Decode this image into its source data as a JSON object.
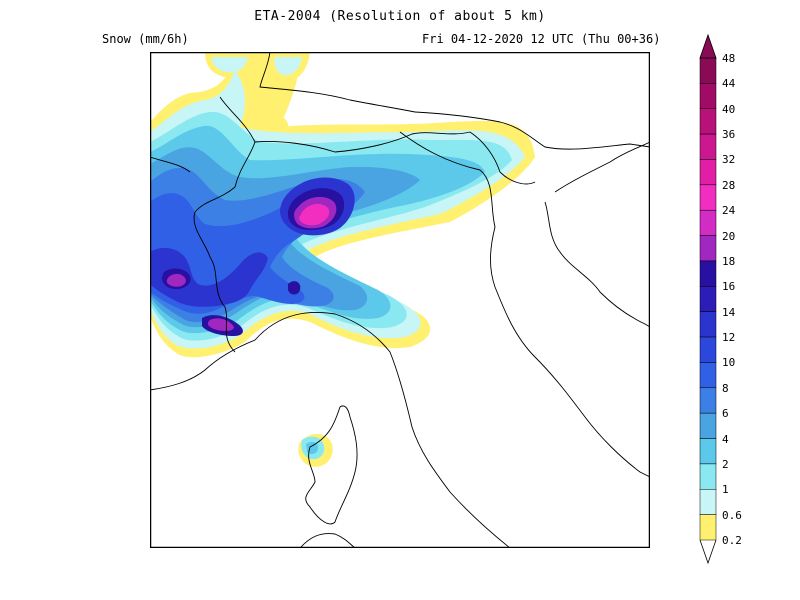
{
  "header": {
    "title": "ETA-2004 (Resolution of about 5 km)",
    "parameter": "Snow (mm/6h)",
    "valid_time": "Fri 04-12-2020 12 UTC (Thu 00+36)"
  },
  "colorbar": {
    "labels": [
      "48",
      "44",
      "40",
      "36",
      "32",
      "28",
      "24",
      "20",
      "18",
      "16",
      "14",
      "12",
      "10",
      "8",
      "6",
      "4",
      "2",
      "1",
      "0.6",
      "0.2"
    ],
    "colors": [
      "#8a0a55",
      "#a00c65",
      "#b8127a",
      "#cc1890",
      "#e21ea6",
      "#f22ec0",
      "#d22cc4",
      "#a028c0",
      "#2810a0",
      "#2c1cb8",
      "#2c34d0",
      "#2c48dc",
      "#3060e6",
      "#3c80e6",
      "#4aa4e2",
      "#5cc8ea",
      "#8ae8f0",
      "#c8f6f6",
      "#fff070"
    ]
  },
  "map": {
    "region": "Northern Italy / Alps",
    "legend_palette": {
      "light_yellow": "#fff070",
      "pale_cyan": "#c8f6f6",
      "cyan": "#8ae8f0",
      "sky": "#5cc8ea",
      "blue_light": "#4aa4e2",
      "blue": "#3060e6",
      "blue_dark": "#2c34d0",
      "navy": "#2810a0",
      "purple": "#a028c0",
      "magenta": "#e21ea6"
    }
  }
}
